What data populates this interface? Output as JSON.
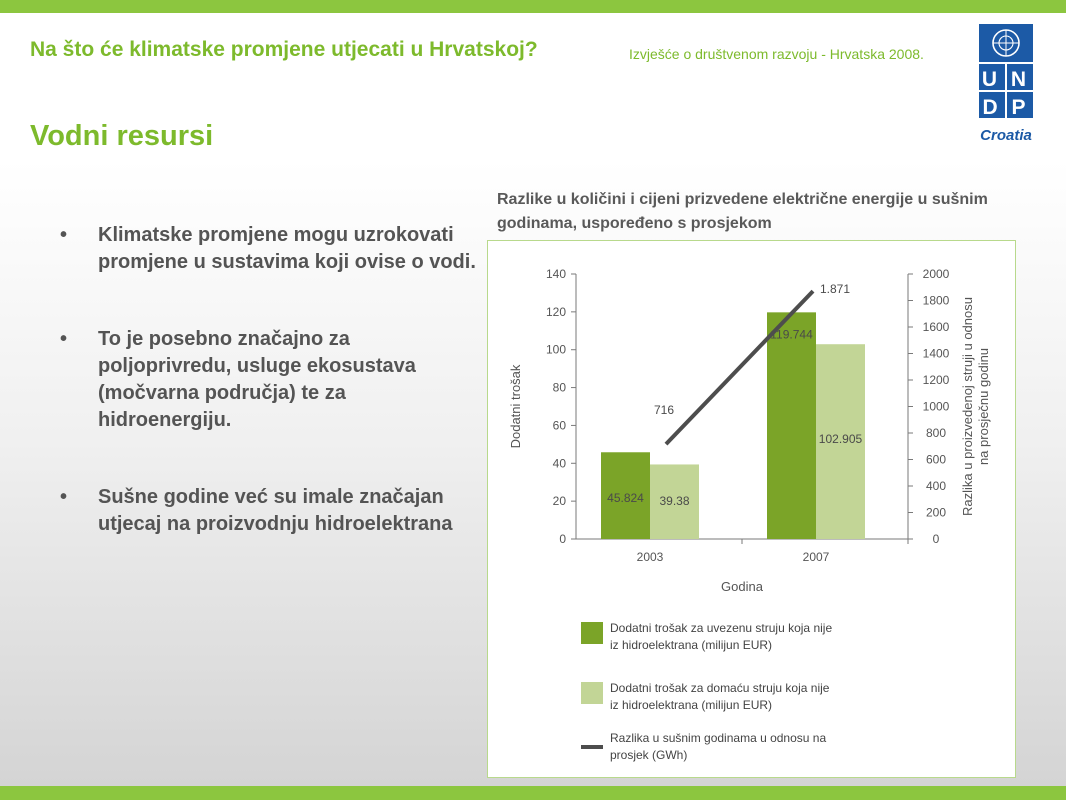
{
  "header": {
    "title": "Na što će klimatske promjene utjecati u Hrvatskoj?",
    "report": "Izvješće o društvenom razvoju - Hrvatska 2008."
  },
  "logo": {
    "line1": "U N",
    "line2": "D P",
    "country": "Croatia",
    "icon": "un-emblem-icon"
  },
  "slide": {
    "title": "Vodni resursi"
  },
  "bullets": [
    "Klimatske promjene mogu uzrokovati promjene u sustavima koji ovise o vodi.",
    "To je posebno značajno za poljoprivredu, usluge ekosustava (močvarna područja) te za hidroenergiju.",
    "Sušne godine već su imale značajan utjecaj na proizvodnju hidroelektrana"
  ],
  "chart_caption": "Razlike u količini i cijeni prizvedene električne energije u sušnim godinama, uspoređeno s prosjekom",
  "chart_data": {
    "type": "bar",
    "categories": [
      "2003",
      "2007"
    ],
    "xlabel": "Godina",
    "ylabel": "Dodatni trošak",
    "y2label": "Razlika u proizvedenoj struji u odnosu na prosječnu godinu",
    "ylim": [
      0,
      140
    ],
    "y2lim": [
      0,
      2000
    ],
    "yticks": [
      "0",
      "20",
      "40",
      "60",
      "80",
      "100",
      "120",
      "140"
    ],
    "y2ticks": [
      "0",
      "200",
      "400",
      "600",
      "800",
      "1000",
      "1200",
      "1400",
      "1600",
      "1800",
      "2000"
    ],
    "series": [
      {
        "name": "Dodatni trošak za uvezenu struju koja nije iz hidroelektrana (milijun EUR)",
        "values": [
          45.824,
          119.744
        ],
        "labels": [
          "45.824",
          "119.744"
        ],
        "color": "#7ba428"
      },
      {
        "name": "Dodatni trošak za domaću struju koja nije iz hidroelektrana (milijun EUR)",
        "values": [
          39.38,
          102.905
        ],
        "labels": [
          "39.38",
          "102.905"
        ],
        "color": "#c2d596"
      }
    ],
    "line": {
      "name": "Razlika u sušnim godinama u odnosu na prosjek (GWh)",
      "values": [
        716,
        1871
      ],
      "labels": [
        "716",
        "1.871"
      ],
      "color": "#4d4d4d",
      "axis": "right"
    },
    "legend": "bottom",
    "grid": false
  }
}
